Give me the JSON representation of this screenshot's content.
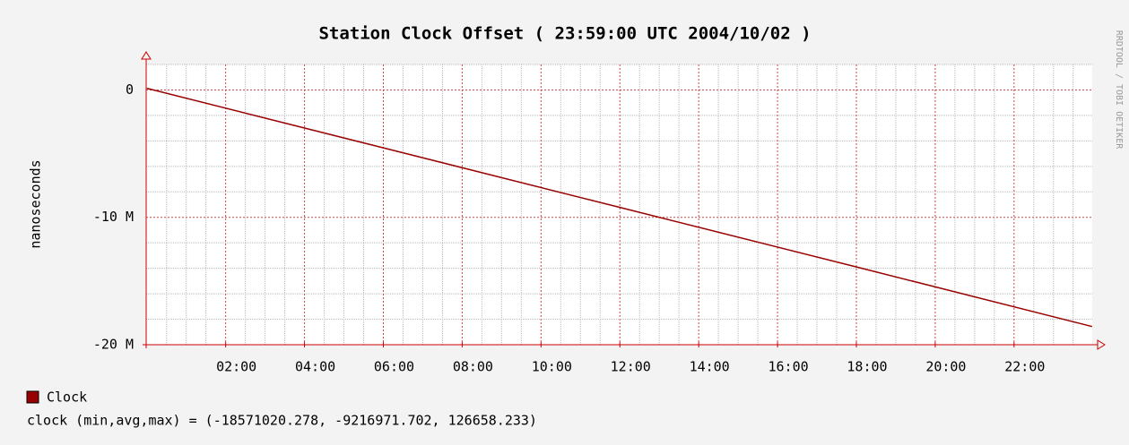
{
  "chart_data": {
    "type": "line",
    "title": "Station Clock Offset ( 23:59:00 UTC 2004/10/02 )",
    "ylabel": "nanoseconds",
    "watermark": "RRDTOOL / TOBI OETIKER",
    "summary": "clock (min,avg,max) = (-18571020.278, -9216971.702, 126658.233)",
    "x": [
      0,
      6,
      12,
      18,
      23.98
    ],
    "series": [
      {
        "name": "Clock",
        "color": "#990000",
        "values": [
          126658,
          -4547000,
          -9221000,
          -13895000,
          -18571020
        ]
      }
    ],
    "xlim": [
      -0.0167,
      23.9833
    ],
    "ylim": [
      -20000000,
      2000000
    ],
    "xticks": [
      {
        "value": 2,
        "label": "02:00"
      },
      {
        "value": 4,
        "label": "04:00"
      },
      {
        "value": 6,
        "label": "06:00"
      },
      {
        "value": 8,
        "label": "08:00"
      },
      {
        "value": 10,
        "label": "10:00"
      },
      {
        "value": 12,
        "label": "12:00"
      },
      {
        "value": 14,
        "label": "14:00"
      },
      {
        "value": 16,
        "label": "16:00"
      },
      {
        "value": 18,
        "label": "18:00"
      },
      {
        "value": 20,
        "label": "20:00"
      },
      {
        "value": 22,
        "label": "22:00"
      }
    ],
    "yticks": [
      {
        "value": 0,
        "label": "0"
      },
      {
        "value": -10000000,
        "label": "-10 M"
      },
      {
        "value": -20000000,
        "label": "-20 M"
      }
    ],
    "xminorticks": [
      0.5,
      1,
      1.5,
      2.5,
      3,
      3.5,
      4.5,
      5,
      5.5,
      6.5,
      7,
      7.5,
      8.5,
      9,
      9.5,
      10.5,
      11,
      11.5,
      12.5,
      13,
      13.5,
      14.5,
      15,
      15.5,
      16.5,
      17,
      17.5,
      18.5,
      19,
      19.5,
      20.5,
      21,
      21.5,
      22.5,
      23,
      23.5
    ],
    "yminorticks": [
      -18000000,
      -16000000,
      -14000000,
      -12000000,
      -8000000,
      -6000000,
      -4000000,
      -2000000,
      2000000
    ],
    "grid": true
  }
}
